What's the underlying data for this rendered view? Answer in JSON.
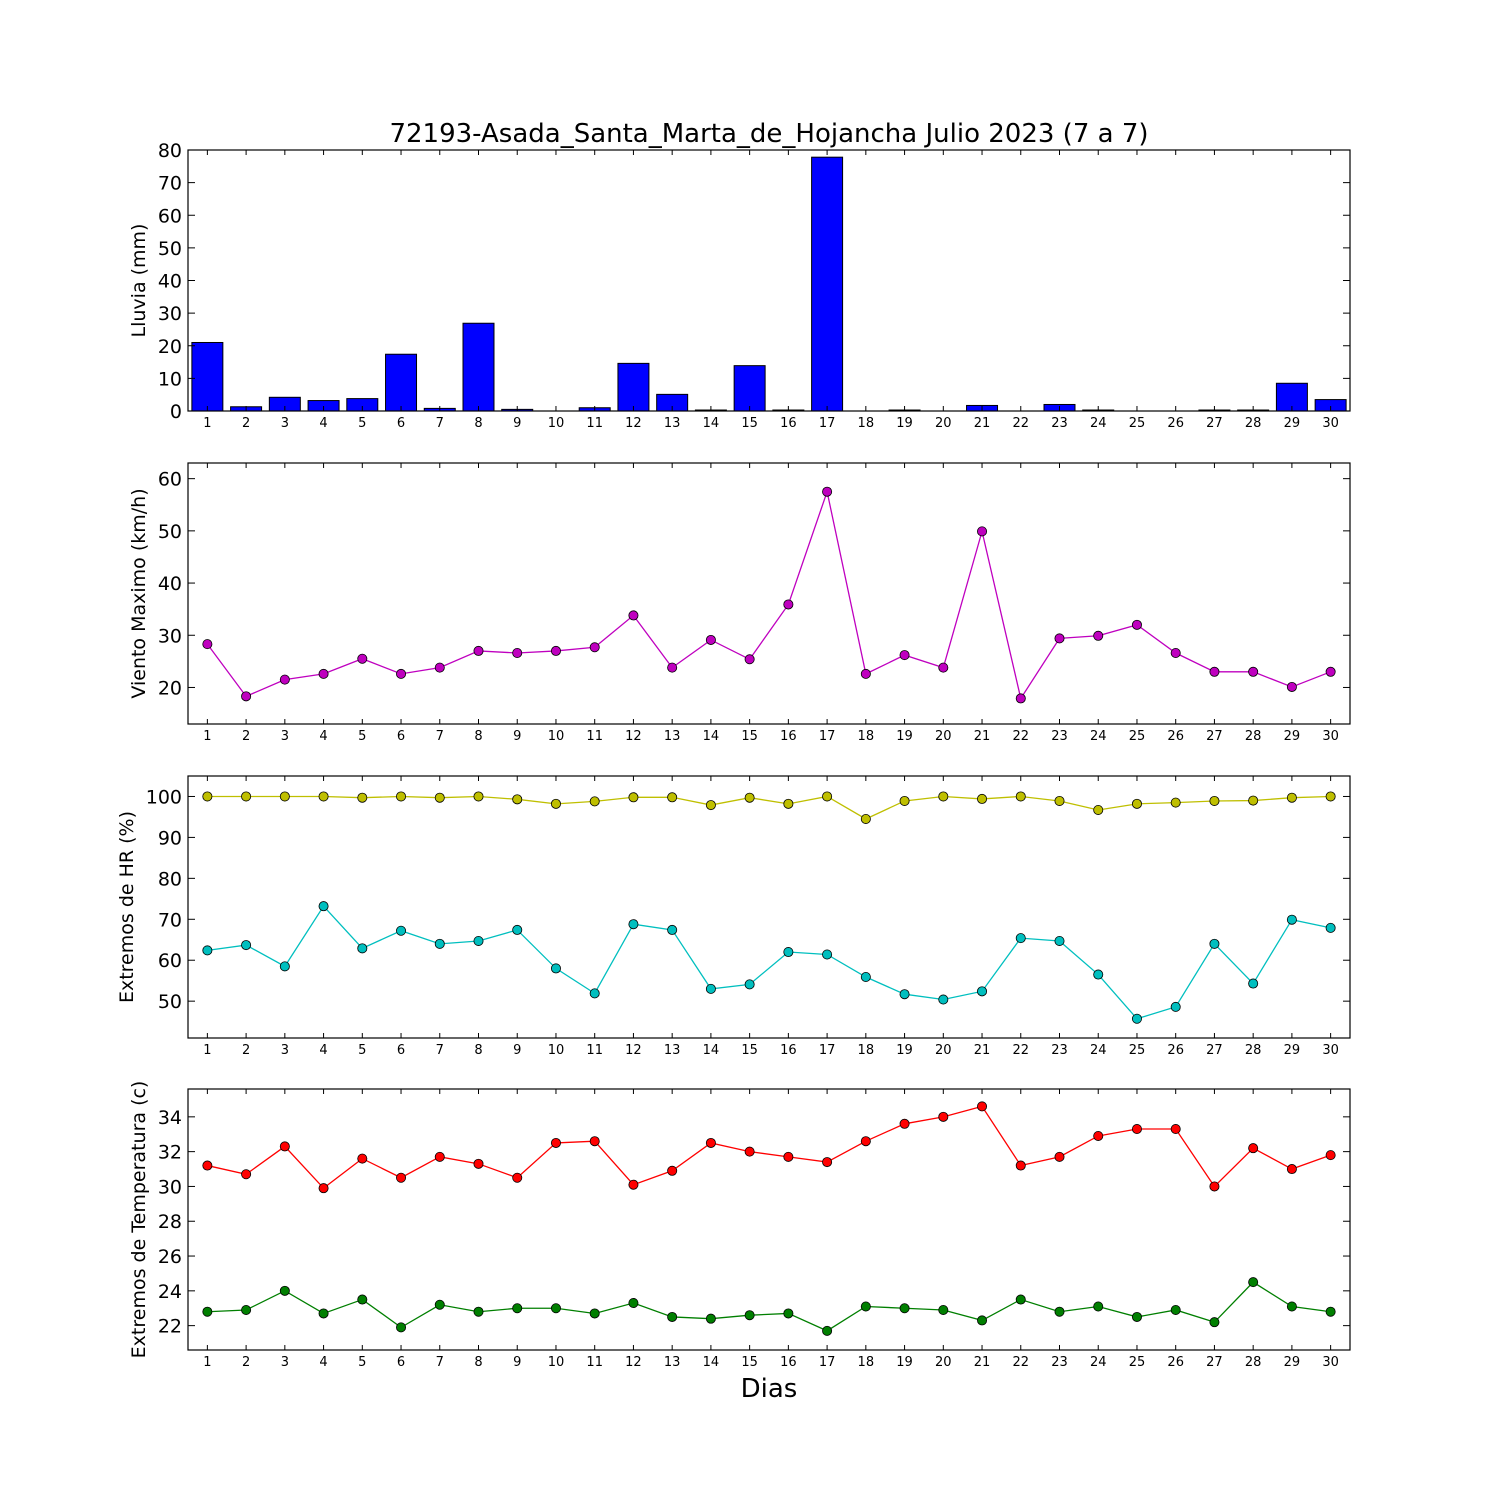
{
  "figure": {
    "title": "72193-Asada_Santa_Marta_de_Hojancha Julio 2023  (7 a 7)",
    "xlabel": "Dias"
  },
  "chart_data": [
    {
      "type": "bar",
      "ylabel": "Lluvia (mm)",
      "categories": [
        "1",
        "2",
        "3",
        "4",
        "5",
        "6",
        "7",
        "8",
        "9",
        "10",
        "11",
        "12",
        "13",
        "14",
        "15",
        "16",
        "17",
        "18",
        "19",
        "20",
        "21",
        "22",
        "23",
        "24",
        "25",
        "26",
        "27",
        "28",
        "29",
        "30"
      ],
      "ylim": [
        0,
        80
      ],
      "yticks": [
        0,
        10,
        20,
        30,
        40,
        50,
        60,
        70,
        80
      ],
      "series": [
        {
          "color": "#0000ff",
          "values": [
            21.0,
            1.3,
            4.2,
            3.2,
            3.8,
            17.4,
            0.8,
            26.9,
            0.5,
            0.0,
            1.0,
            14.6,
            5.1,
            0.3,
            13.9,
            0.3,
            77.8,
            0.0,
            0.3,
            0.0,
            1.7,
            0.0,
            2.0,
            0.3,
            0.0,
            0.0,
            0.3,
            0.3,
            8.5,
            3.5
          ]
        }
      ]
    },
    {
      "type": "line",
      "ylabel": "Viento Maximo (km/h)",
      "categories": [
        "1",
        "2",
        "3",
        "4",
        "5",
        "6",
        "7",
        "8",
        "9",
        "10",
        "11",
        "12",
        "13",
        "14",
        "15",
        "16",
        "17",
        "18",
        "19",
        "20",
        "21",
        "22",
        "23",
        "24",
        "25",
        "26",
        "27",
        "28",
        "29",
        "30"
      ],
      "ylim": [
        13,
        63
      ],
      "yticks": [
        20,
        30,
        40,
        50,
        60
      ],
      "series": [
        {
          "color": "#bf00bf",
          "values": [
            28.3,
            18.3,
            21.5,
            22.6,
            25.5,
            22.6,
            23.8,
            27.0,
            26.6,
            27.0,
            27.7,
            33.8,
            23.8,
            29.1,
            25.4,
            35.9,
            57.5,
            22.6,
            26.2,
            23.8,
            49.9,
            17.9,
            29.4,
            29.9,
            32.0,
            26.6,
            23.0,
            23.0,
            20.1,
            23.0
          ]
        }
      ]
    },
    {
      "type": "line",
      "ylabel": "Extremos de HR (%)",
      "categories": [
        "1",
        "2",
        "3",
        "4",
        "5",
        "6",
        "7",
        "8",
        "9",
        "10",
        "11",
        "12",
        "13",
        "14",
        "15",
        "16",
        "17",
        "18",
        "19",
        "20",
        "21",
        "22",
        "23",
        "24",
        "25",
        "26",
        "27",
        "28",
        "29",
        "30"
      ],
      "ylim": [
        41,
        105
      ],
      "yticks": [
        50,
        60,
        70,
        80,
        90,
        100
      ],
      "series": [
        {
          "color": "#bfbf00",
          "values": [
            100,
            100,
            100,
            100,
            99.7,
            100,
            99.7,
            100,
            99.3,
            98.2,
            98.8,
            99.8,
            99.8,
            97.9,
            99.7,
            98.2,
            100,
            94.5,
            98.9,
            100,
            99.4,
            100,
            98.9,
            96.7,
            98.2,
            98.5,
            98.9,
            99.0,
            99.7,
            100
          ]
        },
        {
          "color": "#00bfbf",
          "values": [
            62.4,
            63.7,
            58.5,
            73.2,
            62.9,
            67.2,
            64.0,
            64.7,
            67.4,
            58.0,
            51.9,
            68.8,
            67.4,
            53.0,
            54.1,
            62.0,
            61.4,
            55.9,
            51.7,
            50.4,
            52.4,
            65.4,
            64.7,
            56.5,
            45.7,
            48.6,
            64.0,
            54.3,
            69.9,
            67.9
          ]
        }
      ]
    },
    {
      "type": "line",
      "ylabel": "Extremos de Temperatura (c)",
      "categories": [
        "1",
        "2",
        "3",
        "4",
        "5",
        "6",
        "7",
        "8",
        "9",
        "10",
        "11",
        "12",
        "13",
        "14",
        "15",
        "16",
        "17",
        "18",
        "19",
        "20",
        "21",
        "22",
        "23",
        "24",
        "25",
        "26",
        "27",
        "28",
        "29",
        "30"
      ],
      "ylim": [
        20.6,
        35.6
      ],
      "yticks": [
        22,
        24,
        26,
        28,
        30,
        32,
        34
      ],
      "series": [
        {
          "color": "#ff0000",
          "values": [
            31.2,
            30.7,
            32.3,
            29.9,
            31.6,
            30.5,
            31.7,
            31.3,
            30.5,
            32.5,
            32.6,
            30.1,
            30.9,
            32.5,
            32.0,
            31.7,
            31.4,
            32.6,
            33.6,
            34.0,
            34.6,
            31.2,
            31.7,
            32.9,
            33.3,
            33.3,
            30.0,
            32.2,
            31.0,
            31.8
          ]
        },
        {
          "color": "#007f00",
          "values": [
            22.8,
            22.9,
            24.0,
            22.7,
            23.5,
            21.9,
            23.2,
            22.8,
            23.0,
            23.0,
            22.7,
            23.3,
            22.5,
            22.4,
            22.6,
            22.7,
            21.7,
            23.1,
            23.0,
            22.9,
            22.3,
            23.5,
            22.8,
            23.1,
            22.5,
            22.9,
            22.2,
            24.5,
            23.1,
            22.8
          ]
        }
      ]
    }
  ]
}
